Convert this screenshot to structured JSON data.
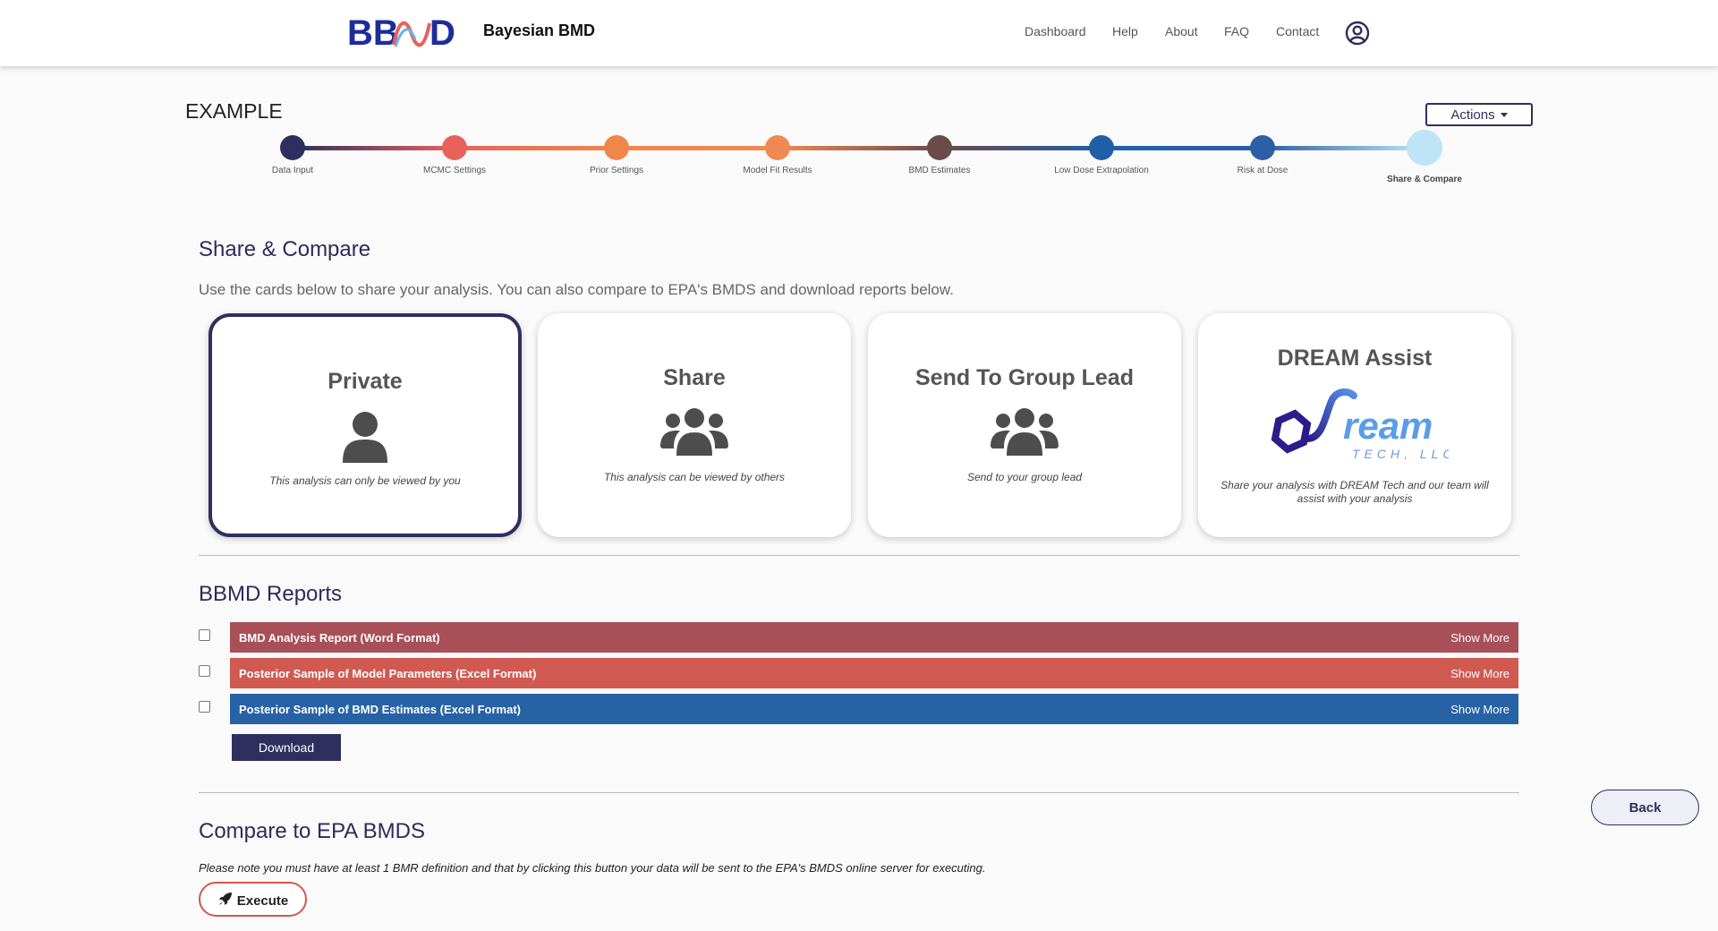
{
  "header": {
    "brand": "Bayesian BMD",
    "nav": [
      "Dashboard",
      "Help",
      "About",
      "FAQ",
      "Contact"
    ]
  },
  "page": {
    "title": "EXAMPLE",
    "actions_label": "Actions"
  },
  "stepper": {
    "steps": [
      {
        "label": "Data Input",
        "color": "#2e2f5e"
      },
      {
        "label": "MCMC Settings",
        "color": "#e8615a"
      },
      {
        "label": "Prior Settings",
        "color": "#f0874a"
      },
      {
        "label": "Model Fit Results",
        "color": "#ef8a52"
      },
      {
        "label": "BMD Estimates",
        "color": "#6b4a4a"
      },
      {
        "label": "Low Dose Extrapolation",
        "color": "#1f5fa8"
      },
      {
        "label": "Risk at Dose",
        "color": "#2c5fa5"
      },
      {
        "label": "Share & Compare",
        "color": "#bfe4f7"
      }
    ],
    "active_index": 7
  },
  "share": {
    "title": "Share & Compare",
    "description": "Use the cards below to share your analysis. You can also compare to EPA's BMDS and download reports below.",
    "cards": [
      {
        "title": "Private",
        "desc": "This analysis can only be viewed by you",
        "icon": "user-icon",
        "selected": true
      },
      {
        "title": "Share",
        "desc": "This analysis can be viewed by others",
        "icon": "users-icon",
        "selected": false
      },
      {
        "title": "Send To Group Lead",
        "desc": "Send to your group lead",
        "icon": "users-icon",
        "selected": false
      },
      {
        "title": "DREAM Assist",
        "desc": "Share your analysis with DREAM Tech and our team will assist with your analysis",
        "icon": "dream-tech-logo",
        "logo_text": "ream",
        "logo_sub": "TECH, LLC",
        "selected": false
      }
    ]
  },
  "reports": {
    "title": "BBMD Reports",
    "items": [
      {
        "name": "BMD Analysis Report (Word Format)",
        "more": "Show More",
        "color": "#a84f58"
      },
      {
        "name": "Posterior Sample of Model Parameters (Excel Format)",
        "more": "Show More",
        "color": "#d05a52"
      },
      {
        "name": "Posterior Sample of BMD Estimates (Excel Format)",
        "more": "Show More",
        "color": "#2762a5"
      }
    ],
    "download_label": "Download"
  },
  "compare": {
    "title": "Compare to EPA BMDS",
    "note": "Please note you must have at least 1 BMR definition and that by clicking this button your data will be sent to the EPA's BMDS online server for executing.",
    "execute_label": "Execute"
  },
  "back_label": "Back"
}
